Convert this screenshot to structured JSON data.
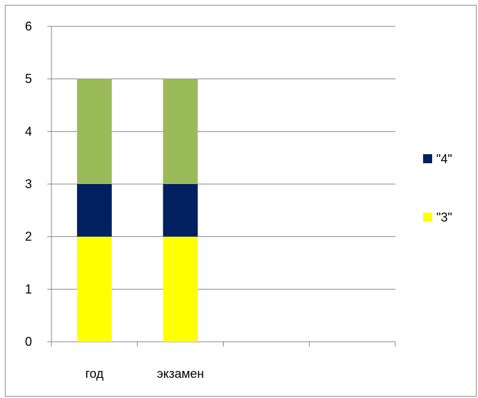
{
  "chart_data": {
    "type": "bar",
    "stacked": true,
    "categories": [
      "год",
      "экзамен",
      "",
      ""
    ],
    "ylim": [
      0,
      6
    ],
    "yticks": [
      "0",
      "1",
      "2",
      "3",
      "4",
      "5",
      "6"
    ],
    "grid": true,
    "legend_position": "right",
    "series": [
      {
        "name": "\"3\"",
        "values": [
          2,
          2,
          0,
          0
        ],
        "color": "#ffff00"
      },
      {
        "name": "\"4\"",
        "values": [
          1,
          1,
          0,
          0
        ],
        "color": "#002060"
      },
      {
        "name": "",
        "values": [
          2,
          2,
          0,
          0
        ],
        "color": "#9bbb59"
      }
    ],
    "legend": [
      {
        "label": "\"4\"",
        "color": "#002060"
      },
      {
        "label": "\"3\"",
        "color": "#ffff00"
      }
    ]
  }
}
